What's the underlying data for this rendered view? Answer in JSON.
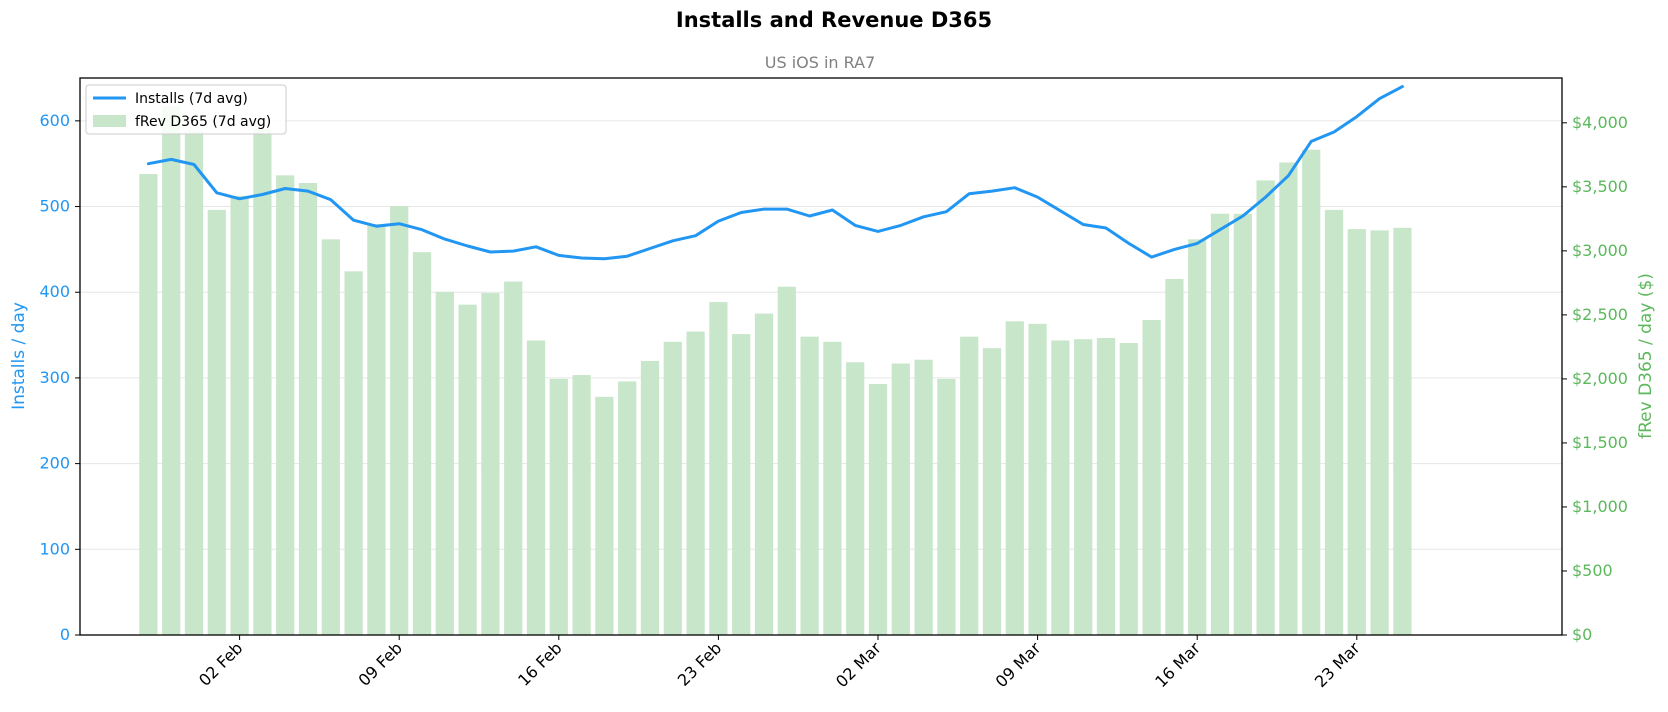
{
  "chart_data": {
    "type": "bar+line",
    "title": "Installs and Revenue D365",
    "subtitle": "US iOS in RA7",
    "ylabel_left": "Installs / day",
    "ylabel_right": "fRev D365 / day ($)",
    "x_tick_labels": [
      "02 Feb",
      "09 Feb",
      "16 Feb",
      "23 Feb",
      "02 Mar",
      "09 Mar",
      "16 Mar",
      "23 Mar"
    ],
    "x_tick_dates": [
      "2026-02-02",
      "2026-02-09",
      "2026-02-16",
      "2026-02-23",
      "2026-03-02",
      "2026-03-09",
      "2026-03-16",
      "2026-03-23"
    ],
    "y_left_ticks": [
      "0",
      "100",
      "200",
      "300",
      "400",
      "500",
      "600"
    ],
    "y_left_tick_values": [
      0,
      100,
      200,
      300,
      400,
      500,
      600
    ],
    "y_left_lim": [
      0,
      650
    ],
    "y_right_ticks": [
      "$0",
      "$500",
      "$1,000",
      "$1,500",
      "$2,000",
      "$2,500",
      "$3,000",
      "$3,500",
      "$4,000"
    ],
    "y_right_tick_values": [
      0,
      500,
      1000,
      1500,
      2000,
      2500,
      3000,
      3500,
      4000
    ],
    "y_right_lim": [
      0,
      4350
    ],
    "x_lim": [
      "2026-01-26",
      "2026-04-01"
    ],
    "grid": true,
    "legend_position": "top-left",
    "legend": [
      "Installs (7d avg)",
      "fRev D365 (7d avg)"
    ],
    "colors": {
      "installs": "#2196f3",
      "revenue": "#c8e6c9",
      "right_axis": "#5cb85c"
    },
    "dates": [
      "2026-01-29",
      "2026-01-30",
      "2026-01-31",
      "2026-02-01",
      "2026-02-02",
      "2026-02-03",
      "2026-02-04",
      "2026-02-05",
      "2026-02-06",
      "2026-02-07",
      "2026-02-08",
      "2026-02-09",
      "2026-02-10",
      "2026-02-11",
      "2026-02-12",
      "2026-02-13",
      "2026-02-14",
      "2026-02-15",
      "2026-02-16",
      "2026-02-17",
      "2026-02-18",
      "2026-02-19",
      "2026-02-20",
      "2026-02-21",
      "2026-02-22",
      "2026-02-23",
      "2026-02-24",
      "2026-02-25",
      "2026-02-26",
      "2026-02-27",
      "2026-02-28",
      "2026-03-01",
      "2026-03-02",
      "2026-03-03",
      "2026-03-04",
      "2026-03-05",
      "2026-03-06",
      "2026-03-07",
      "2026-03-08",
      "2026-03-09",
      "2026-03-10",
      "2026-03-11",
      "2026-03-12",
      "2026-03-13",
      "2026-03-14",
      "2026-03-15",
      "2026-03-16",
      "2026-03-17",
      "2026-03-18",
      "2026-03-19",
      "2026-03-20",
      "2026-03-21",
      "2026-03-22",
      "2026-03-23",
      "2026-03-24",
      "2026-03-25",
      "2026-03-26"
    ],
    "series": [
      {
        "name": "Installs (7d avg)",
        "type": "line",
        "axis": "left",
        "values": [
          550,
          555,
          549,
          516,
          509,
          514,
          521,
          518,
          508,
          484,
          477,
          480,
          473,
          462,
          454,
          447,
          448,
          453,
          443,
          440,
          439,
          442,
          451,
          460,
          466,
          483,
          493,
          497,
          497,
          489,
          496,
          478,
          471,
          478,
          488,
          494,
          515,
          518,
          522,
          511,
          495,
          479,
          475,
          457,
          441,
          450,
          457,
          473,
          489,
          511,
          536,
          576,
          587,
          605,
          626,
          640,
          null
        ]
      },
      {
        "name": "fRev D365 (7d avg)",
        "type": "bar",
        "axis": "right",
        "values": [
          3600,
          4130,
          3940,
          3320,
          3430,
          3950,
          3590,
          3530,
          3090,
          2840,
          3210,
          3350,
          2990,
          2680,
          2580,
          2670,
          2760,
          2300,
          2000,
          2030,
          1860,
          1980,
          2140,
          2290,
          2370,
          2600,
          2350,
          2510,
          2720,
          2330,
          2290,
          2130,
          1960,
          2120,
          2150,
          2000,
          2330,
          2240,
          2450,
          2430,
          2300,
          2310,
          2320,
          2280,
          2460,
          2780,
          3090,
          3290,
          3290,
          3550,
          3690,
          3790,
          3320,
          3170,
          3160,
          3180,
          null
        ]
      }
    ]
  }
}
